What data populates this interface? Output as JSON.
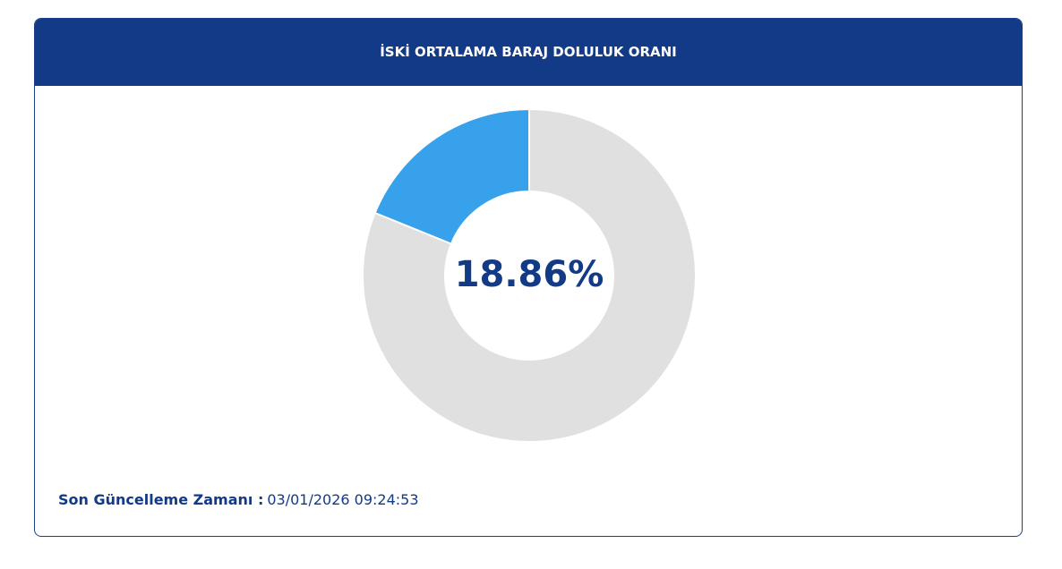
{
  "chart_data": {
    "type": "donut",
    "title": "İSKİ ORTALAMA BARAJ DOLULUK ORANI",
    "values": [
      18.86,
      81.14
    ],
    "value_labels": [
      "18.86%",
      null
    ],
    "colors": [
      "#37a2eb",
      "#e0e0e0"
    ]
  },
  "footer": {
    "label": "Son Güncelleme Zamanı :",
    "timestamp": "03/01/2026 09:24:53"
  }
}
